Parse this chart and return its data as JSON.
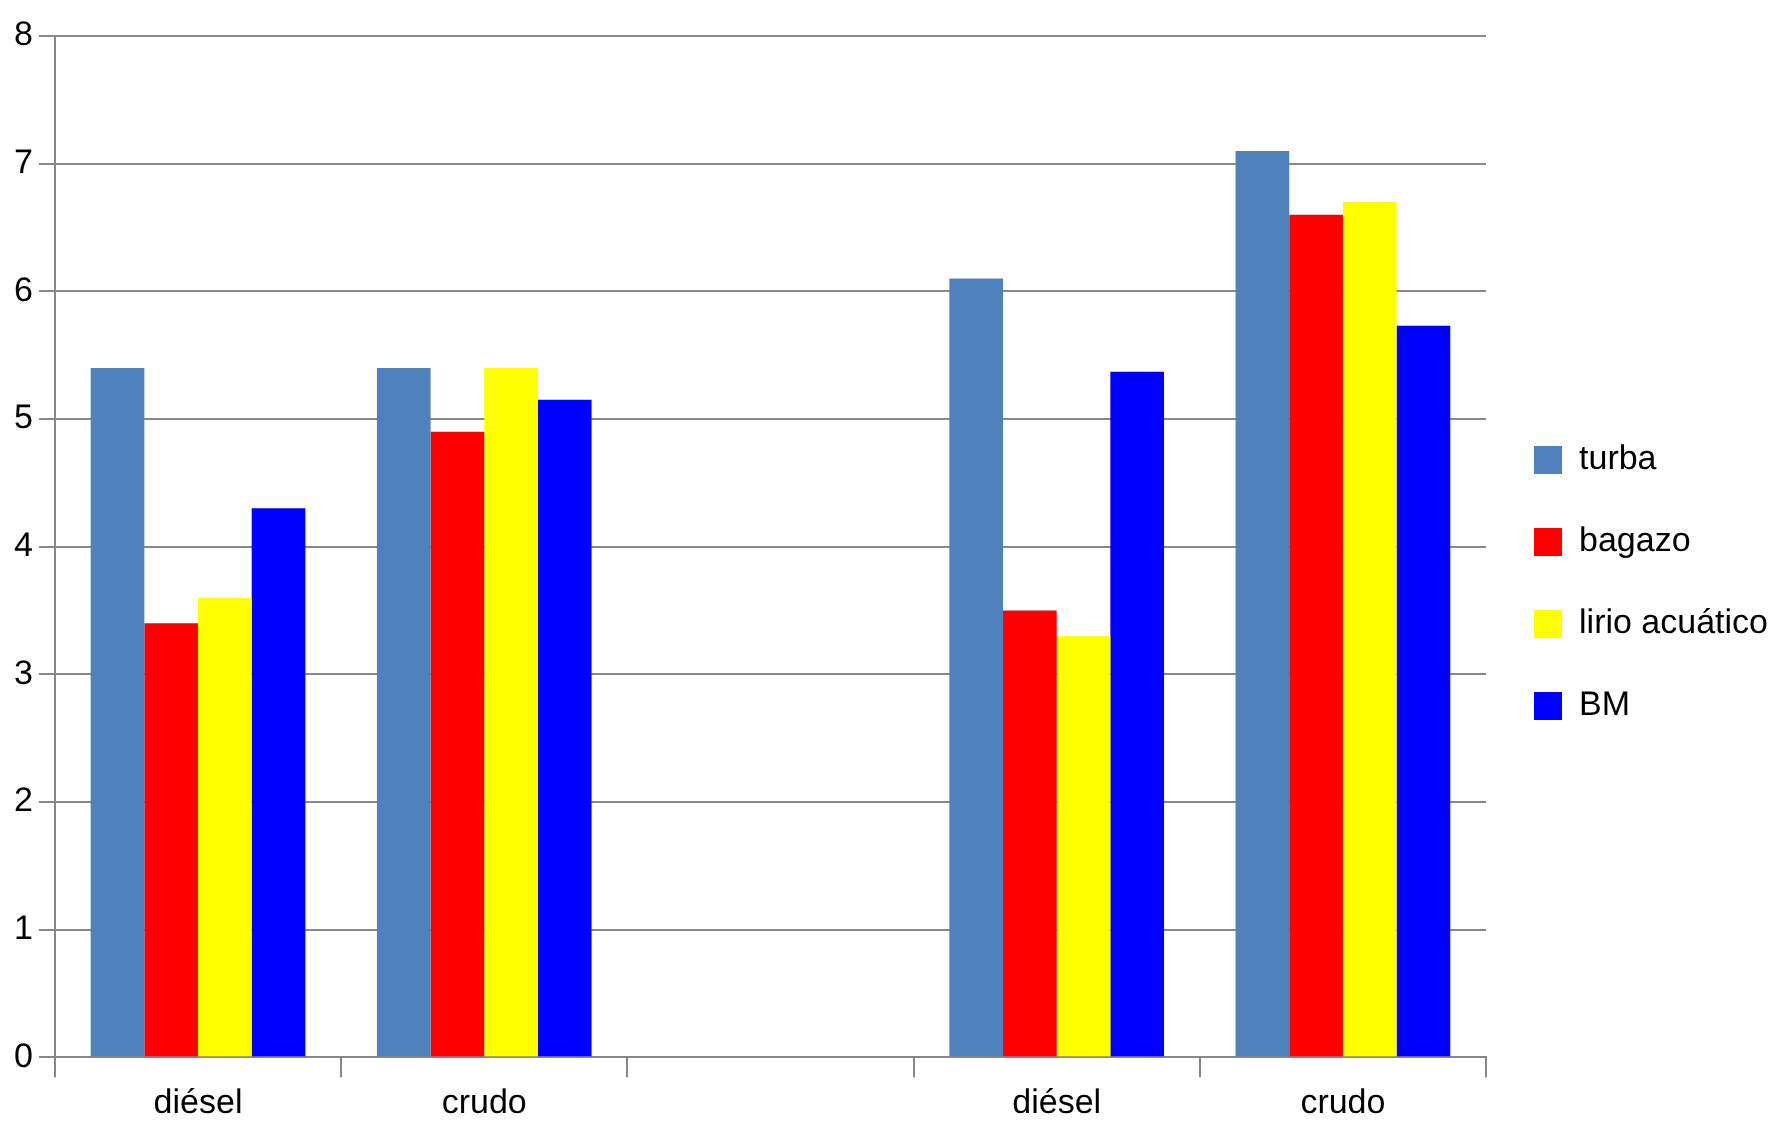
{
  "chart_data": {
    "type": "bar",
    "categories": [
      "diésel",
      "crudo",
      null,
      "diésel",
      "crudo"
    ],
    "series": [
      {
        "name": "turba",
        "color": "#4f81bd",
        "values": [
          5.4,
          5.4,
          null,
          6.1,
          7.1
        ]
      },
      {
        "name": "bagazo",
        "color": "#ff0000",
        "values": [
          3.4,
          4.9,
          null,
          3.5,
          6.6
        ]
      },
      {
        "name": "lirio acuático",
        "color": "#ffff00",
        "values": [
          3.6,
          5.4,
          null,
          3.3,
          6.7
        ]
      },
      {
        "name": "BM",
        "color": "#0000ff",
        "values": [
          4.3,
          5.15,
          null,
          5.37,
          5.73
        ]
      }
    ],
    "ylim": [
      0,
      8
    ],
    "yticks": [
      0,
      1,
      2,
      3,
      4,
      5,
      6,
      7,
      8
    ],
    "grid": "y",
    "legend": "right"
  }
}
